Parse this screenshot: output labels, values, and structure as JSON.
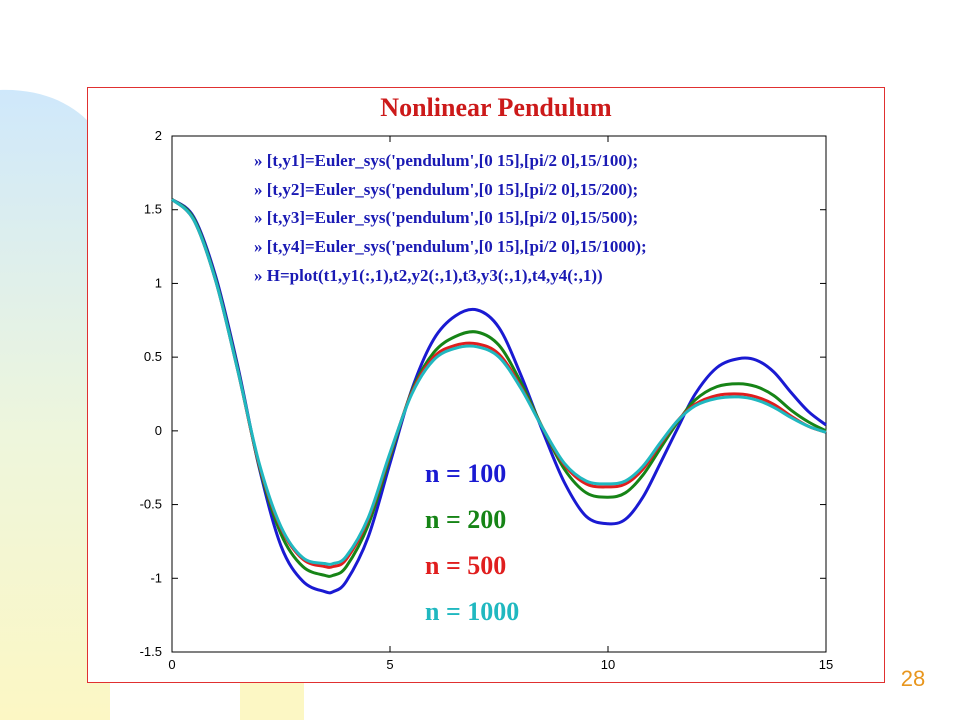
{
  "slide": {
    "page_number": "28"
  },
  "colors": {
    "title": "#cc1a1a",
    "code": "#1a1ab4",
    "frame": "#e03030",
    "page_number": "#e8961e"
  },
  "chart_data": {
    "type": "line",
    "title": "Nonlinear Pendulum",
    "xlabel": "",
    "ylabel": "",
    "xlim": [
      0,
      15
    ],
    "ylim": [
      -1.5,
      2
    ],
    "xticks": [
      "0",
      "5",
      "10",
      "15"
    ],
    "yticks": [
      "-1.5",
      "-1",
      "-0.5",
      "0",
      "0.5",
      "1",
      "1.5",
      "2"
    ],
    "grid": false,
    "annotations": [
      "» [t,y1]=Euler_sys('pendulum',[0 15],[pi/2 0],15/100);",
      "» [t,y2]=Euler_sys('pendulum',[0 15],[pi/2 0],15/200);",
      "» [t,y3]=Euler_sys('pendulum',[0 15],[pi/2 0],15/500);",
      "» [t,y4]=Euler_sys('pendulum',[0 15],[pi/2 0],15/1000);",
      "» H=plot(t1,y1(:,1),t2,y2(:,1),t3,y3(:,1),t4,y4(:,1))"
    ],
    "series": [
      {
        "name": "n = 100",
        "color": "#1a1ad2",
        "x": [
          0,
          0.5,
          1.0,
          1.5,
          2.0,
          2.5,
          3.0,
          3.5,
          3.7,
          4.0,
          4.5,
          5.0,
          5.5,
          6.0,
          6.5,
          7.0,
          7.5,
          8.0,
          8.5,
          9.0,
          9.5,
          10.0,
          10.4,
          10.8,
          11.2,
          11.6,
          12.0,
          12.5,
          13.0,
          13.4,
          13.8,
          14.2,
          14.6,
          15.0
        ],
        "y": [
          1.57,
          1.45,
          1.05,
          0.45,
          -0.25,
          -0.78,
          -1.02,
          -1.09,
          -1.09,
          -1.02,
          -0.72,
          -0.22,
          0.28,
          0.62,
          0.78,
          0.82,
          0.7,
          0.38,
          0.0,
          -0.35,
          -0.58,
          -0.63,
          -0.6,
          -0.45,
          -0.22,
          0.02,
          0.25,
          0.43,
          0.49,
          0.48,
          0.4,
          0.26,
          0.13,
          0.04
        ]
      },
      {
        "name": "n = 200",
        "color": "#168416",
        "x": [
          0,
          0.5,
          1.0,
          1.5,
          2.0,
          2.5,
          3.0,
          3.5,
          3.7,
          4.0,
          4.5,
          5.0,
          5.5,
          6.0,
          6.5,
          7.0,
          7.5,
          8.0,
          8.5,
          9.0,
          9.5,
          10.0,
          10.4,
          10.8,
          11.2,
          11.6,
          12.0,
          12.5,
          13.0,
          13.4,
          13.8,
          14.2,
          14.6,
          15.0
        ],
        "y": [
          1.57,
          1.44,
          1.03,
          0.43,
          -0.24,
          -0.7,
          -0.92,
          -0.98,
          -0.98,
          -0.92,
          -0.64,
          -0.18,
          0.27,
          0.53,
          0.64,
          0.67,
          0.58,
          0.33,
          0.02,
          -0.26,
          -0.42,
          -0.45,
          -0.42,
          -0.3,
          -0.12,
          0.06,
          0.21,
          0.3,
          0.32,
          0.3,
          0.24,
          0.14,
          0.06,
          0.0
        ]
      },
      {
        "name": "n = 500",
        "color": "#e01e1e",
        "x": [
          0,
          0.5,
          1.0,
          1.5,
          2.0,
          2.5,
          3.0,
          3.5,
          3.7,
          4.0,
          4.5,
          5.0,
          5.5,
          6.0,
          6.5,
          7.0,
          7.5,
          8.0,
          8.5,
          9.0,
          9.5,
          10.0,
          10.4,
          10.8,
          11.2,
          11.6,
          12.0,
          12.5,
          13.0,
          13.4,
          13.8,
          14.2,
          14.6,
          15.0
        ],
        "y": [
          1.57,
          1.43,
          1.02,
          0.42,
          -0.23,
          -0.66,
          -0.87,
          -0.92,
          -0.92,
          -0.87,
          -0.6,
          -0.16,
          0.26,
          0.5,
          0.58,
          0.59,
          0.52,
          0.3,
          0.02,
          -0.23,
          -0.36,
          -0.38,
          -0.36,
          -0.26,
          -0.09,
          0.07,
          0.18,
          0.24,
          0.25,
          0.23,
          0.18,
          0.1,
          0.03,
          -0.01
        ]
      },
      {
        "name": "n = 1000",
        "color": "#20b8c0",
        "x": [
          0,
          0.5,
          1.0,
          1.5,
          2.0,
          2.5,
          3.0,
          3.5,
          3.7,
          4.0,
          4.5,
          5.0,
          5.5,
          6.0,
          6.5,
          7.0,
          7.5,
          8.0,
          8.5,
          9.0,
          9.5,
          10.0,
          10.4,
          10.8,
          11.2,
          11.6,
          12.0,
          12.5,
          13.0,
          13.4,
          13.8,
          14.2,
          14.6,
          15.0
        ],
        "y": [
          1.57,
          1.43,
          1.02,
          0.42,
          -0.22,
          -0.65,
          -0.86,
          -0.9,
          -0.9,
          -0.85,
          -0.59,
          -0.15,
          0.25,
          0.48,
          0.56,
          0.57,
          0.5,
          0.29,
          0.02,
          -0.22,
          -0.34,
          -0.36,
          -0.34,
          -0.24,
          -0.08,
          0.07,
          0.17,
          0.22,
          0.23,
          0.21,
          0.16,
          0.09,
          0.03,
          -0.01
        ]
      }
    ]
  }
}
